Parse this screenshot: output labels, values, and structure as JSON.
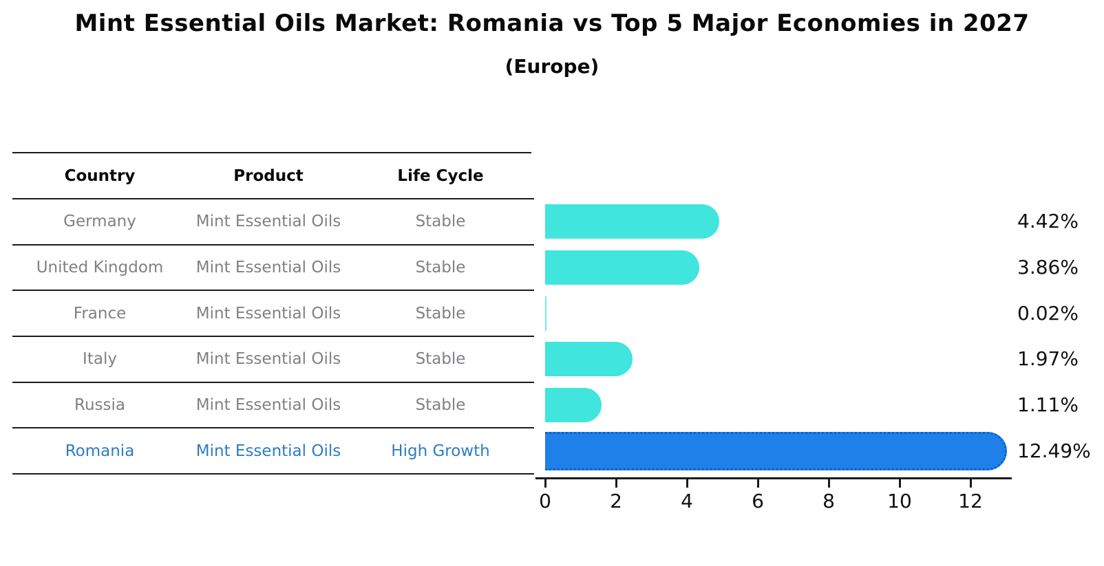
{
  "title": "Mint Essential Oils Market: Romania vs Top 5 Major Economies in 2027",
  "subtitle": "(Europe)",
  "table": {
    "headers": [
      "Country",
      "Product",
      "Life Cycle"
    ],
    "rows": [
      {
        "country": "Germany",
        "product": "Mint Essential Oils",
        "life_cycle": "Stable",
        "highlight": false
      },
      {
        "country": "United Kingdom",
        "product": "Mint Essential Oils",
        "life_cycle": "Stable",
        "highlight": false
      },
      {
        "country": "France",
        "product": "Mint Essential Oils",
        "life_cycle": "Stable",
        "highlight": false
      },
      {
        "country": "Italy",
        "product": "Mint Essential Oils",
        "life_cycle": "Stable",
        "highlight": false
      },
      {
        "country": "Russia",
        "product": "Mint Essential Oils",
        "life_cycle": "Stable",
        "highlight": false
      },
      {
        "country": "Romania",
        "product": "Mint Essential Oils",
        "life_cycle": "High Growth",
        "highlight": true
      }
    ]
  },
  "chart_data": {
    "type": "bar",
    "orientation": "horizontal",
    "categories": [
      "Germany",
      "United Kingdom",
      "France",
      "Italy",
      "Russia",
      "Romania"
    ],
    "values": [
      4.42,
      3.86,
      0.02,
      1.97,
      1.11,
      12.49
    ],
    "value_labels": [
      "4.42%",
      "3.86%",
      "0.02%",
      "1.97%",
      "1.11%",
      "12.49%"
    ],
    "x_ticks": [
      0,
      2,
      4,
      6,
      8,
      10,
      12
    ],
    "xlim": [
      0,
      13.1
    ],
    "highlight_index": 5,
    "grid": false,
    "legend": "none",
    "colors": {
      "bar": "#40e5dd",
      "highlight_bar": "#1f80ea",
      "highlight_border": "#0b62c4",
      "highlight_text": "#2e7cc4",
      "table_text": "#7f8184",
      "axis": "#1a1a1a",
      "label_text": "#111111"
    }
  }
}
